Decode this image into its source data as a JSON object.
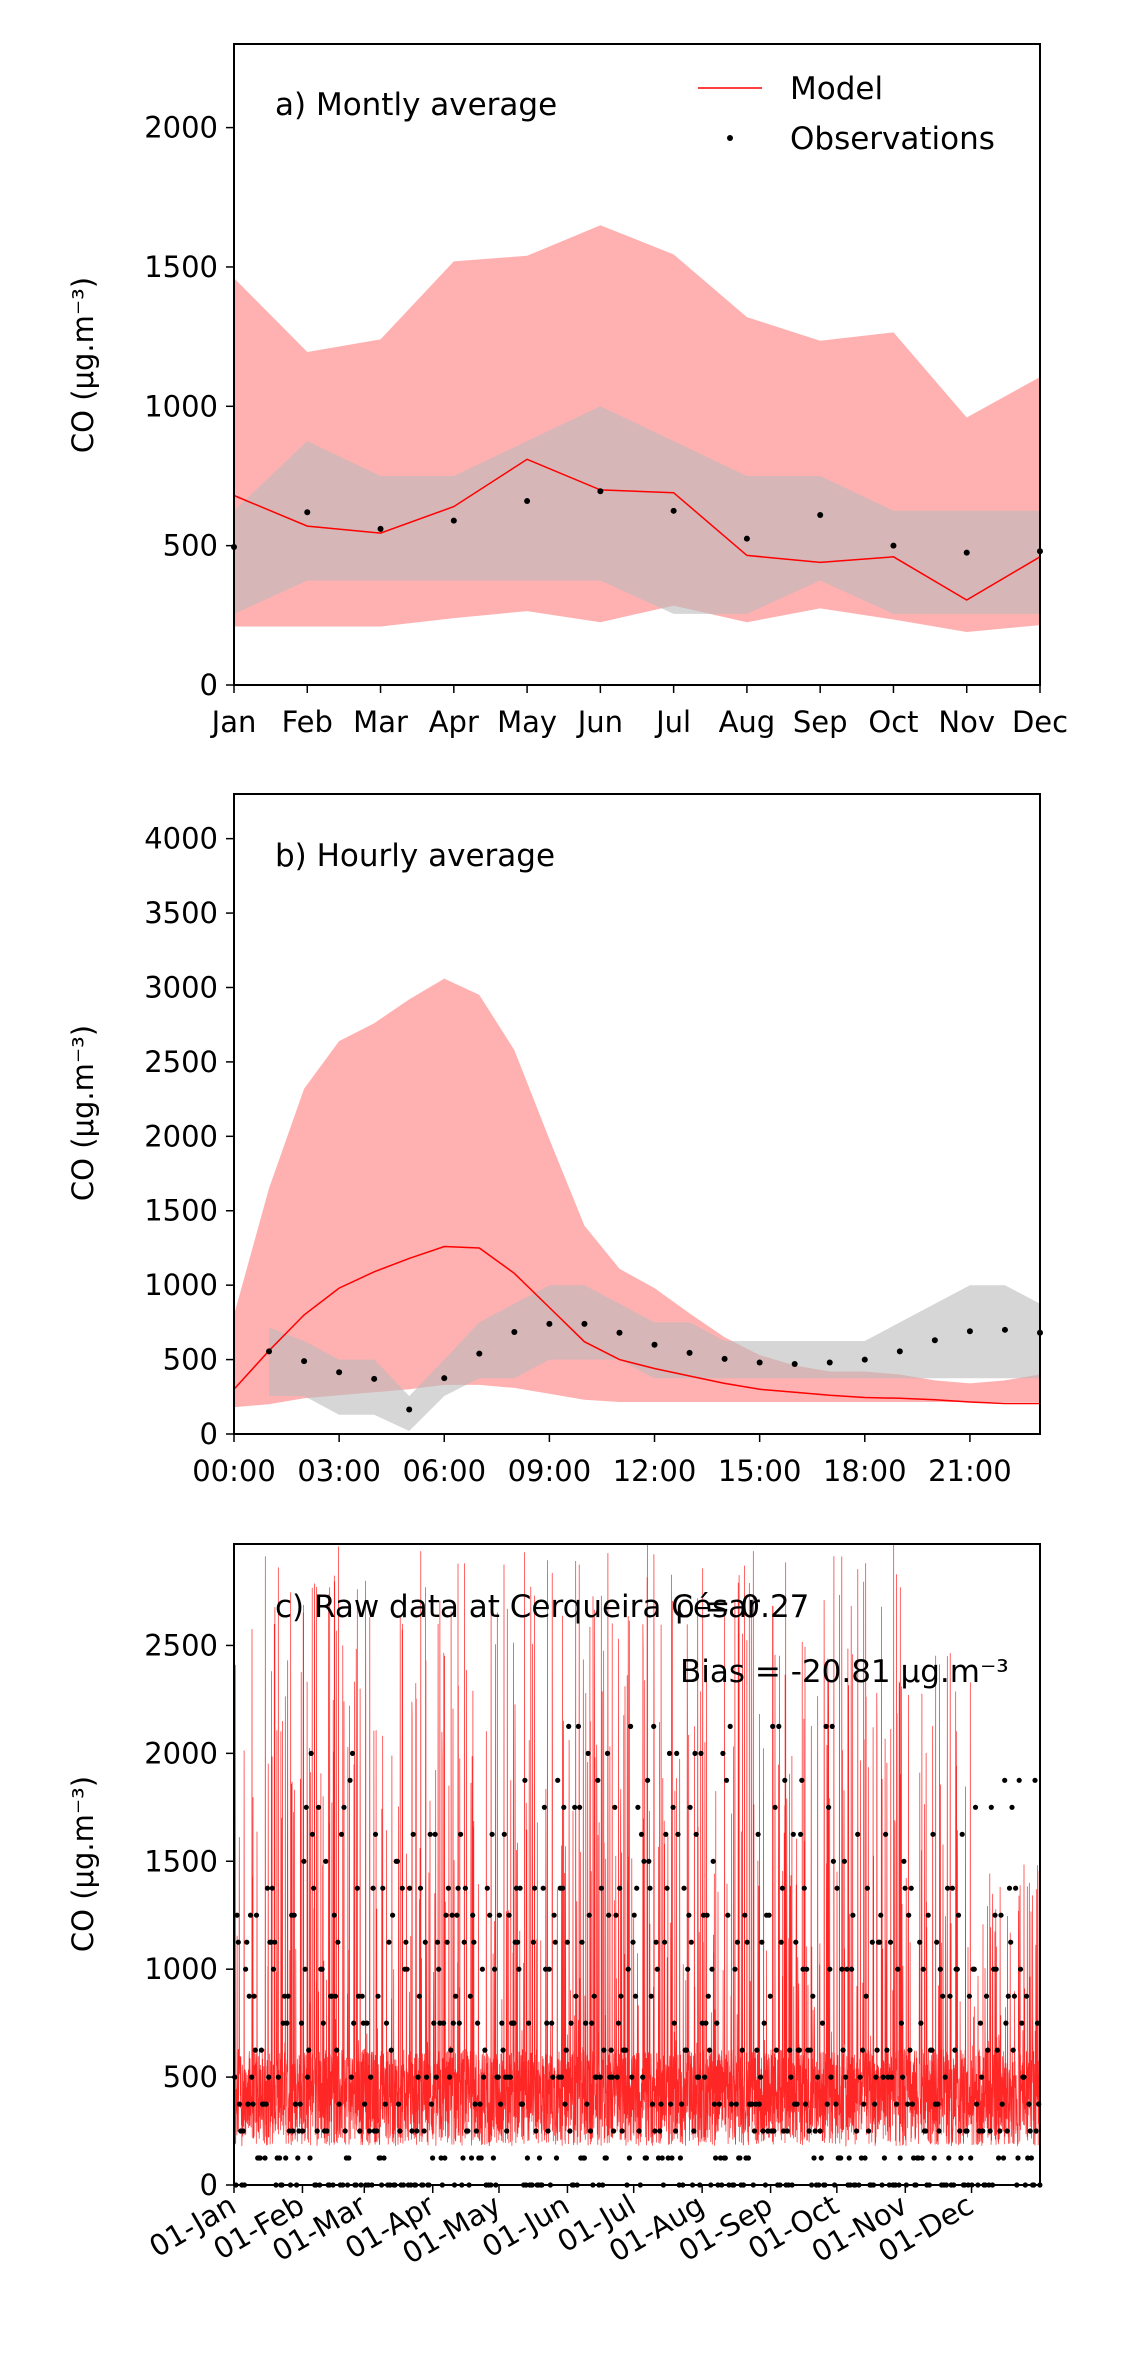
{
  "chart_data": [
    {
      "type": "line",
      "title": "a) Montly average",
      "ylabel": "CO (μg.m⁻³)",
      "xlabel": "",
      "categories": [
        "Jan",
        "Feb",
        "Mar",
        "Apr",
        "May",
        "Jun",
        "Jul",
        "Aug",
        "Sep",
        "Oct",
        "Nov",
        "Dec"
      ],
      "ylim": [
        0,
        2300
      ],
      "yticks": [
        "0",
        "500",
        "1000",
        "1500",
        "2000"
      ],
      "legend_position": "top-right",
      "series": [
        {
          "name": "Model",
          "kind": "line",
          "color": "#ff0000",
          "values": [
            680,
            570,
            545,
            640,
            810,
            700,
            690,
            465,
            440,
            460,
            305,
            460
          ]
        },
        {
          "name": "Observations",
          "kind": "points",
          "color": "#000000",
          "values": [
            495,
            620,
            560,
            590,
            660,
            695,
            625,
            525,
            610,
            500,
            475,
            480
          ]
        }
      ],
      "model_range": {
        "color": "#ff8080",
        "low": [
          210,
          210,
          210,
          240,
          265,
          225,
          285,
          225,
          275,
          235,
          190,
          215
        ],
        "high": [
          1460,
          1195,
          1240,
          1520,
          1540,
          1650,
          1545,
          1320,
          1235,
          1265,
          960,
          1105
        ]
      },
      "obs_range": {
        "color": "#bbbbbb",
        "low": [
          255,
          375,
          375,
          375,
          375,
          375,
          255,
          255,
          375,
          255,
          255,
          255
        ],
        "high": [
          625,
          875,
          750,
          750,
          875,
          1000,
          875,
          750,
          750,
          625,
          625,
          625
        ]
      }
    },
    {
      "type": "line",
      "title": "b) Hourly average",
      "ylabel": "CO (μg.m⁻³)",
      "xlabel": "",
      "x": [
        0,
        1,
        2,
        3,
        4,
        5,
        6,
        7,
        8,
        9,
        10,
        11,
        12,
        13,
        14,
        15,
        16,
        17,
        18,
        19,
        20,
        21,
        22,
        23
      ],
      "xticklabels": [
        "00:00",
        "03:00",
        "06:00",
        "09:00",
        "12:00",
        "15:00",
        "18:00",
        "21:00"
      ],
      "xlim": [
        0,
        23
      ],
      "ylim": [
        0,
        4300
      ],
      "yticks": [
        "0",
        "500",
        "1000",
        "1500",
        "2000",
        "2500",
        "3000",
        "3500",
        "4000"
      ],
      "series": [
        {
          "name": "Model",
          "kind": "line",
          "color": "#ff0000",
          "values": [
            300,
            560,
            800,
            980,
            1090,
            1180,
            1260,
            1250,
            1080,
            850,
            620,
            500,
            440,
            390,
            340,
            300,
            280,
            260,
            245,
            240,
            230,
            215,
            205,
            205
          ]
        },
        {
          "name": "Observations",
          "kind": "points",
          "color": "#000000",
          "values": [
            null,
            555,
            490,
            415,
            370,
            165,
            375,
            540,
            685,
            740,
            740,
            680,
            600,
            545,
            505,
            480,
            470,
            480,
            500,
            555,
            630,
            690,
            700,
            680
          ]
        }
      ],
      "model_range": {
        "color": "#ff8080",
        "low": [
          180,
          200,
          240,
          260,
          280,
          300,
          330,
          330,
          310,
          270,
          230,
          215,
          215,
          215,
          215,
          215,
          215,
          215,
          215,
          215,
          215,
          215,
          215,
          215
        ],
        "high": [
          800,
          1650,
          2320,
          2640,
          2760,
          2920,
          3060,
          2950,
          2580,
          1980,
          1400,
          1110,
          980,
          810,
          650,
          530,
          460,
          420,
          420,
          400,
          360,
          340,
          360,
          400
        ]
      },
      "obs_range": {
        "color": "#bbbbbb",
        "low": [
          null,
          255,
          255,
          130,
          130,
          20,
          255,
          375,
          375,
          500,
          500,
          500,
          375,
          375,
          375,
          375,
          375,
          375,
          375,
          375,
          375,
          375,
          375,
          375
        ],
        "high": [
          null,
          715,
          625,
          500,
          500,
          255,
          500,
          750,
          875,
          1000,
          1000,
          875,
          750,
          750,
          625,
          625,
          625,
          625,
          625,
          750,
          875,
          1000,
          1000,
          875
        ]
      }
    },
    {
      "type": "line",
      "title": "c) Raw data at Cerqueira César",
      "annotations": [
        "ρ = 0.27",
        "Bias = -20.81 μg.m⁻³"
      ],
      "ylabel": "CO (μg.m⁻³)",
      "xlabel": "",
      "xticklabels": [
        "01-Jan",
        "01-Feb",
        "01-Mar",
        "01-Apr",
        "01-May",
        "01-Jun",
        "01-Jul",
        "01-Aug",
        "01-Sep",
        "01-Oct",
        "01-Nov",
        "01-Dec"
      ],
      "xtick_days": [
        0,
        31,
        59,
        90,
        120,
        151,
        181,
        212,
        243,
        273,
        304,
        334
      ],
      "xlim": [
        0,
        365
      ],
      "ylim": [
        0,
        2970
      ],
      "yticks": [
        "0",
        "500",
        "1000",
        "1500",
        "2000",
        "2500"
      ],
      "obs_levels": [
        0,
        125,
        250,
        375,
        500,
        625,
        750,
        875,
        1000,
        1125,
        1250,
        1375,
        1500,
        1625,
        1750,
        1875,
        2000,
        2125
      ],
      "obs_max_by_month": [
        1375,
        2000,
        1750,
        1750,
        1875,
        2125,
        2125,
        2125,
        2125,
        1875,
        1625,
        1875
      ],
      "model_color": "#ff0000",
      "obs_color": "#000000",
      "series": [
        {
          "name": "Model",
          "kind": "hourly line",
          "color": "#ff0000",
          "monthly_spike_max": [
            2970,
            2970,
            2970,
            2970,
            2970,
            2970,
            2970,
            2970,
            2970,
            2970,
            2500,
            1500
          ]
        },
        {
          "name": "Observations",
          "kind": "points",
          "color": "#000000"
        }
      ]
    }
  ]
}
